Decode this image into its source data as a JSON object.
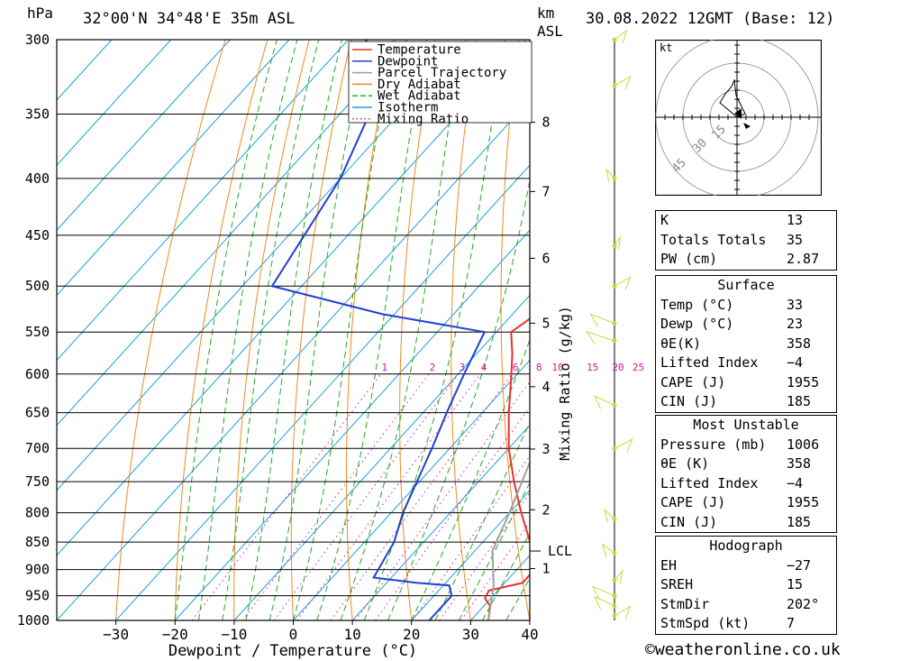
{
  "header": {
    "pressure_unit": "hPa",
    "location": "32°00'N 34°48'E 35m ASL",
    "height_unit_km": "km",
    "height_unit_asl": "ASL",
    "datetime": "30.08.2022 12GMT (Base: 12)"
  },
  "footer": {
    "copyright": "©weatheronline.co.uk"
  },
  "colors": {
    "temperature": "#e8312b",
    "dewpoint": "#1f3fd6",
    "parcel": "#a0a0a0",
    "dry_adiabat": "#f08a1c",
    "wet_adiabat": "#22aa22",
    "isotherm": "#1b9ee0",
    "mixing_ratio": "#cc1aa0",
    "wind": "#b8e03a"
  },
  "chart_data": {
    "type": "line",
    "title": "",
    "xlabel": "Dewpoint / Temperature (°C)",
    "ylabel": "",
    "y_scale": "log-pressure (skew-T)",
    "xlim": [
      -40,
      40
    ],
    "ylim": [
      1000,
      300
    ],
    "x_ticks": [
      -30,
      -20,
      -10,
      0,
      10,
      20,
      30,
      40
    ],
    "y_ticks": [
      300,
      350,
      400,
      450,
      500,
      550,
      600,
      650,
      700,
      750,
      800,
      850,
      900,
      950,
      1000
    ],
    "legend": [
      "Temperature",
      "Dewpoint",
      "Parcel Trajectory",
      "Dry Adiabat",
      "Wet Adiabat",
      "Isotherm",
      "Mixing Ratio"
    ],
    "legend_placement": "top-center",
    "series": [
      {
        "name": "Temperature",
        "points": [
          {
            "p": 1000,
            "t": 33
          },
          {
            "p": 970,
            "t": 31
          },
          {
            "p": 955,
            "t": 29
          },
          {
            "p": 940,
            "t": 28.5
          },
          {
            "p": 925,
            "t": 33
          },
          {
            "p": 900,
            "t": 33
          },
          {
            "p": 850,
            "t": 28
          },
          {
            "p": 800,
            "t": 22
          },
          {
            "p": 750,
            "t": 16
          },
          {
            "p": 700,
            "t": 10
          },
          {
            "p": 650,
            "t": 4.5
          },
          {
            "p": 600,
            "t": -1
          },
          {
            "p": 575,
            "t": -4
          },
          {
            "p": 550,
            "t": -7.5
          },
          {
            "p": 530,
            "t": -6
          },
          {
            "p": 500,
            "t": -8
          },
          {
            "p": 480,
            "t": -10
          },
          {
            "p": 450,
            "t": -14
          },
          {
            "p": 400,
            "t": -22
          },
          {
            "p": 375,
            "t": -25
          },
          {
            "p": 350,
            "t": -29
          },
          {
            "p": 320,
            "t": -34.5
          },
          {
            "p": 305,
            "t": -37.5
          }
        ]
      },
      {
        "name": "Dewpoint",
        "points": [
          {
            "p": 1000,
            "t": 23
          },
          {
            "p": 970,
            "t": 23
          },
          {
            "p": 950,
            "t": 23
          },
          {
            "p": 930,
            "t": 21
          },
          {
            "p": 925,
            "t": 15
          },
          {
            "p": 915,
            "t": 7
          },
          {
            "p": 850,
            "t": 5
          },
          {
            "p": 800,
            "t": 2
          },
          {
            "p": 700,
            "t": -3
          },
          {
            "p": 650,
            "t": -6
          },
          {
            "p": 600,
            "t": -9
          },
          {
            "p": 550,
            "t": -12
          },
          {
            "p": 530,
            "t": -32
          },
          {
            "p": 500,
            "t": -55
          },
          {
            "p": 400,
            "t": -60
          },
          {
            "p": 350,
            "t": -65
          },
          {
            "p": 300,
            "t": -77
          }
        ]
      },
      {
        "name": "Parcel Trajectory",
        "points": [
          {
            "p": 1000,
            "t": 33
          },
          {
            "p": 930,
            "t": 28.5
          },
          {
            "p": 866,
            "t": 23
          },
          {
            "p": 800,
            "t": 20
          },
          {
            "p": 700,
            "t": 14.5
          },
          {
            "p": 600,
            "t": 7.5
          },
          {
            "p": 500,
            "t": -2
          },
          {
            "p": 450,
            "t": -8
          },
          {
            "p": 400,
            "t": -15.5
          },
          {
            "p": 365,
            "t": -21.5
          }
        ]
      }
    ],
    "mixing_ratio_labels": [
      "1",
      "2",
      "3",
      "4",
      "6",
      "8",
      "10",
      "15",
      "20",
      "25"
    ],
    "mixing_ratio_axis_label": "Mixing Ratio (g/kg)",
    "height_ticks_km": [
      {
        "km": "1",
        "p": 898
      },
      {
        "km": "2",
        "p": 795
      },
      {
        "km": "3",
        "p": 701
      },
      {
        "km": "4",
        "p": 616
      },
      {
        "km": "5",
        "p": 540
      },
      {
        "km": "6",
        "p": 472
      },
      {
        "km": "7",
        "p": 411
      },
      {
        "km": "8",
        "p": 356
      }
    ],
    "lcl": {
      "label": "LCL",
      "p": 866
    }
  },
  "hodograph": {
    "unit": "kt",
    "ring_labels": [
      "15",
      "30",
      "45"
    ]
  },
  "stats": {
    "indices": [
      {
        "label": "K",
        "value": "13"
      },
      {
        "label": "Totals Totals",
        "value": "35"
      },
      {
        "label": "PW (cm)",
        "value": "2.87"
      }
    ],
    "surface": {
      "title": "Surface",
      "rows": [
        {
          "label": "Temp (°C)",
          "value": "33"
        },
        {
          "label": "Dewp (°C)",
          "value": "23"
        },
        {
          "label": "θE(K)",
          "value": "358"
        },
        {
          "label": "Lifted Index",
          "value": "−4"
        },
        {
          "label": "CAPE (J)",
          "value": "1955"
        },
        {
          "label": "CIN (J)",
          "value": "185"
        }
      ]
    },
    "most_unstable": {
      "title": "Most Unstable",
      "rows": [
        {
          "label": "Pressure (mb)",
          "value": "1006"
        },
        {
          "label": "θE (K)",
          "value": "358"
        },
        {
          "label": "Lifted Index",
          "value": "−4"
        },
        {
          "label": "CAPE (J)",
          "value": "1955"
        },
        {
          "label": "CIN (J)",
          "value": "185"
        }
      ]
    },
    "hodograph": {
      "title": "Hodograph",
      "rows": [
        {
          "label": "EH",
          "value": "−27"
        },
        {
          "label": "SREH",
          "value": "15"
        },
        {
          "label": "StmDir",
          "value": "202°"
        },
        {
          "label": "StmSpd (kt)",
          "value": "7"
        }
      ]
    }
  }
}
